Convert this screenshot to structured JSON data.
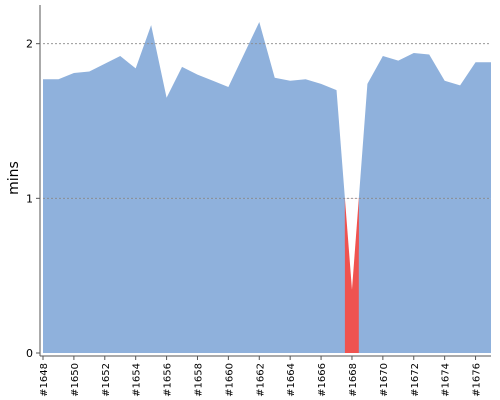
{
  "chart_data": {
    "type": "area",
    "title": "",
    "xlabel": "",
    "ylabel": "mins",
    "ylim": [
      0,
      2.25
    ],
    "y_ticks": [
      0,
      1,
      2
    ],
    "y_tick_labels": [
      "0",
      "1",
      "2"
    ],
    "grid": "horizontal dashed at 1 and 2",
    "x": [
      "#1648",
      "#1649",
      "#1650",
      "#1651",
      "#1652",
      "#1653",
      "#1654",
      "#1655",
      "#1656",
      "#1657",
      "#1658",
      "#1659",
      "#1660",
      "#1661",
      "#1662",
      "#1663",
      "#1664",
      "#1665",
      "#1666",
      "#1667",
      "#1668",
      "#1669",
      "#1670",
      "#1671",
      "#1672",
      "#1673",
      "#1674",
      "#1675",
      "#1676",
      "#1677"
    ],
    "x_tick_labels": [
      "#1648",
      "#1650",
      "#1652",
      "#1654",
      "#1656",
      "#1658",
      "#1660",
      "#1662",
      "#1664",
      "#1666",
      "#1668",
      "#1670",
      "#1672",
      "#1674",
      "#1676"
    ],
    "series": [
      {
        "values": [
          1.77,
          1.77,
          1.81,
          1.82,
          1.87,
          1.92,
          1.84,
          2.12,
          1.65,
          1.85,
          1.8,
          1.76,
          1.72,
          1.93,
          2.14,
          1.78,
          1.76,
          1.77,
          1.74,
          1.7,
          0.41,
          1.74,
          1.92,
          1.89,
          1.94,
          1.93,
          1.76,
          1.73,
          1.88,
          1.88
        ]
      }
    ],
    "threshold": 1,
    "colors": {
      "above": "#8fb1dc",
      "below": "#ef5350",
      "grid": "#888888",
      "axis": "#555555"
    }
  }
}
